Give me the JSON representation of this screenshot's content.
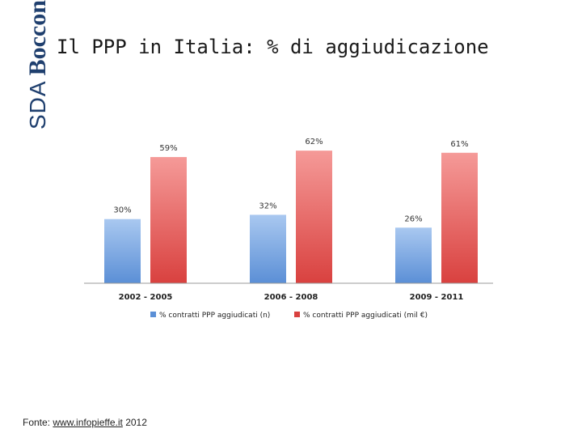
{
  "logo": {
    "sda": "SDA",
    "bocconi": "Bocconi"
  },
  "title": "Il PPP in Italia: % di aggiudicazione",
  "source": {
    "prefix": "Fonte: ",
    "link": "www.infopieffe.it",
    "suffix": " 2012"
  },
  "colors": {
    "series1": "#5b8fd6",
    "series2": "#d9413f",
    "axis": "#9a9a9a"
  },
  "chart_data": {
    "type": "bar",
    "title": "",
    "categories": [
      "2002 - 2005",
      "2006 - 2008",
      "2009 - 2011"
    ],
    "series": [
      {
        "name": "% contratti PPP aggiudicati (n)",
        "values": [
          30,
          32,
          26
        ],
        "labels": [
          "30%",
          "32%",
          "26%"
        ]
      },
      {
        "name": "% contratti PPP aggiudicati (mil €)",
        "values": [
          59,
          62,
          61
        ],
        "labels": [
          "59%",
          "62%",
          "61%"
        ]
      }
    ],
    "ylim": [
      0,
      70
    ],
    "xlabel": "",
    "ylabel": "",
    "grid": false,
    "legend": "bottom"
  }
}
